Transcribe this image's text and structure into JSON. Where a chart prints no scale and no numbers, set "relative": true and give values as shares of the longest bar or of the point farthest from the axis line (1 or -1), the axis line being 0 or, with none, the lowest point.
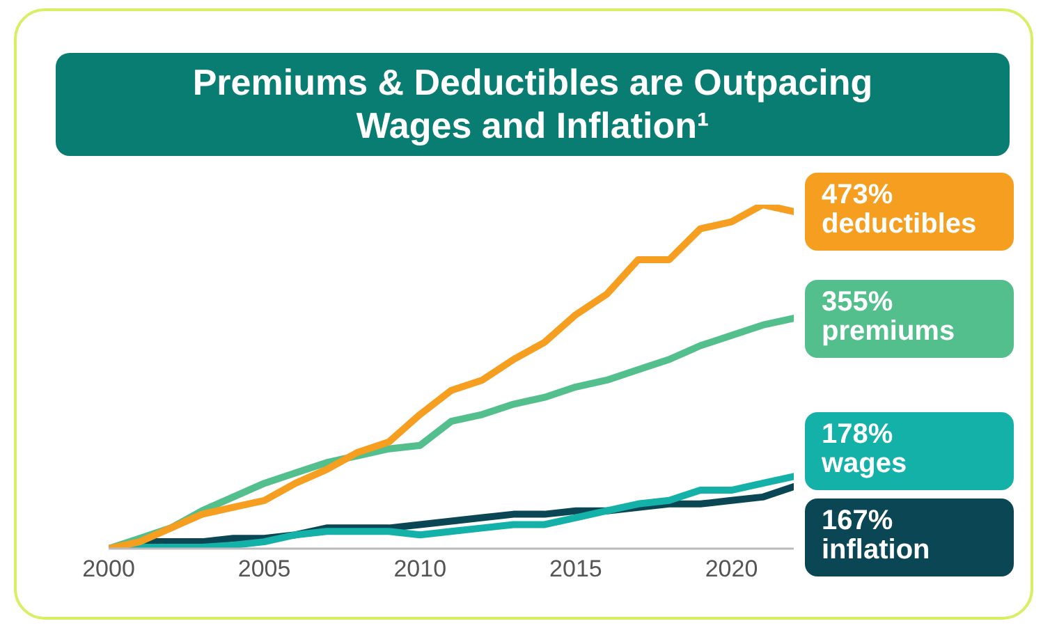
{
  "chart_data": {
    "type": "line",
    "title": "Premiums & Deductibles are Outpacing Wages and Inflation¹",
    "relative": true,
    "x": [
      2000,
      2001,
      2002,
      2003,
      2004,
      2005,
      2006,
      2007,
      2008,
      2009,
      2010,
      2011,
      2012,
      2013,
      2014,
      2015,
      2016,
      2017,
      2018,
      2019,
      2020,
      2021,
      2022
    ],
    "xlim": [
      2000,
      2022
    ],
    "xticks": [
      2000,
      2005,
      2010,
      2015,
      2020
    ],
    "series": [
      {
        "name": "deductibles",
        "color": "#f59e1f",
        "values": [
          0,
          0.02,
          0.06,
          0.1,
          0.12,
          0.14,
          0.19,
          0.23,
          0.28,
          0.31,
          0.39,
          0.46,
          0.49,
          0.55,
          0.6,
          0.68,
          0.74,
          0.84,
          0.84,
          0.93,
          0.95,
          1,
          0.98
        ]
      },
      {
        "name": "premiums",
        "color": "#52bf8c",
        "values": [
          0,
          0.03,
          0.06,
          0.11,
          0.15,
          0.19,
          0.22,
          0.25,
          0.27,
          0.29,
          0.3,
          0.37,
          0.39,
          0.42,
          0.44,
          0.47,
          0.49,
          0.52,
          0.55,
          0.59,
          0.62,
          0.65,
          0.67
        ]
      },
      {
        "name": "wages",
        "color": "#14b1a8",
        "values": [
          0,
          0.004,
          0.004,
          0.004,
          0.01,
          0.02,
          0.04,
          0.05,
          0.05,
          0.05,
          0.04,
          0.05,
          0.06,
          0.07,
          0.07,
          0.09,
          0.11,
          0.13,
          0.14,
          0.17,
          0.17,
          0.19,
          0.21
        ]
      },
      {
        "name": "inflation",
        "color": "#0b4655",
        "values": [
          0,
          0.02,
          0.02,
          0.02,
          0.03,
          0.03,
          0.04,
          0.06,
          0.06,
          0.06,
          0.07,
          0.08,
          0.09,
          0.1,
          0.1,
          0.11,
          0.11,
          0.12,
          0.13,
          0.13,
          0.14,
          0.15,
          0.18
        ]
      }
    ],
    "annotations": [
      "473%",
      "355%",
      "178%",
      "167%"
    ],
    "grid": false,
    "legend": false,
    "marker": "none",
    "line_style": "solid"
  }
}
